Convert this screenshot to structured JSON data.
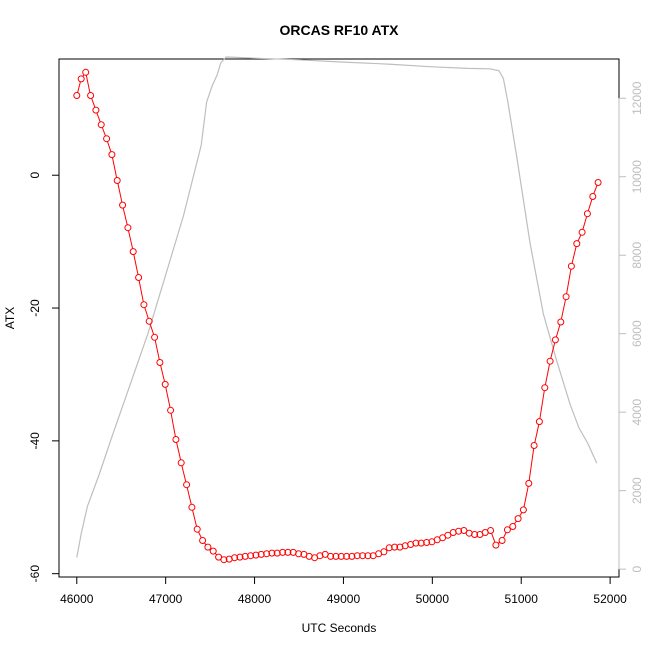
{
  "chart_data": {
    "type": "line",
    "title": "ORCAS RF10 ATX",
    "xlabel": "UTC Seconds",
    "ylabel": "ATX",
    "x_ticks": [
      46000,
      47000,
      48000,
      49000,
      50000,
      51000,
      52000
    ],
    "y_ticks": [
      -60,
      -40,
      -20,
      0
    ],
    "y2_ticks": [
      0,
      2000,
      4000,
      6000,
      8000,
      10000,
      12000
    ],
    "xlim": [
      45800,
      52100
    ],
    "ylim": [
      -60.5,
      17.5
    ],
    "y2lim": [
      -200,
      13000
    ],
    "grid": false,
    "colors": {
      "atx_series": "#ff0000",
      "secondary_series": "#bebebe",
      "secondary_axis": "#bebebe",
      "axis": "#000000"
    },
    "series": [
      {
        "axis": "left",
        "style": "line-with-open-circles",
        "points": [
          [
            46000,
            12.0
          ],
          [
            46050,
            14.5
          ],
          [
            46100,
            15.5
          ],
          [
            46155,
            12.0
          ],
          [
            46215,
            9.8
          ],
          [
            46275,
            7.6
          ],
          [
            46335,
            5.5
          ],
          [
            46395,
            3.1
          ],
          [
            46455,
            -0.8
          ],
          [
            46515,
            -4.5
          ],
          [
            46575,
            -7.9
          ],
          [
            46635,
            -11.5
          ],
          [
            46695,
            -15.4
          ],
          [
            46755,
            -19.5
          ],
          [
            46815,
            -22.0
          ],
          [
            46875,
            -24.4
          ],
          [
            46935,
            -28.2
          ],
          [
            46995,
            -31.5
          ],
          [
            47055,
            -35.4
          ],
          [
            47115,
            -39.8
          ],
          [
            47175,
            -43.3
          ],
          [
            47235,
            -46.6
          ],
          [
            47295,
            -50.0
          ],
          [
            47355,
            -53.3
          ],
          [
            47415,
            -55.0
          ],
          [
            47475,
            -56.0
          ],
          [
            47535,
            -56.6
          ],
          [
            47595,
            -57.5
          ],
          [
            47655,
            -57.9
          ],
          [
            47715,
            -57.8
          ],
          [
            47775,
            -57.6
          ],
          [
            47835,
            -57.5
          ],
          [
            47895,
            -57.4
          ],
          [
            47955,
            -57.3
          ],
          [
            48015,
            -57.2
          ],
          [
            48075,
            -57.1
          ],
          [
            48135,
            -57.0
          ],
          [
            48195,
            -56.9
          ],
          [
            48255,
            -56.9
          ],
          [
            48315,
            -56.8
          ],
          [
            48375,
            -56.8
          ],
          [
            48435,
            -56.8
          ],
          [
            48495,
            -57.0
          ],
          [
            48555,
            -57.1
          ],
          [
            48615,
            -57.4
          ],
          [
            48675,
            -57.6
          ],
          [
            48735,
            -57.3
          ],
          [
            48795,
            -57.1
          ],
          [
            48855,
            -57.4
          ],
          [
            48915,
            -57.4
          ],
          [
            48975,
            -57.4
          ],
          [
            49035,
            -57.4
          ],
          [
            49095,
            -57.4
          ],
          [
            49155,
            -57.3
          ],
          [
            49215,
            -57.3
          ],
          [
            49275,
            -57.3
          ],
          [
            49335,
            -57.3
          ],
          [
            49395,
            -57.0
          ],
          [
            49455,
            -56.7
          ],
          [
            49515,
            -56.1
          ],
          [
            49575,
            -56.0
          ],
          [
            49635,
            -56.0
          ],
          [
            49695,
            -55.8
          ],
          [
            49755,
            -55.6
          ],
          [
            49815,
            -55.4
          ],
          [
            49875,
            -55.4
          ],
          [
            49935,
            -55.3
          ],
          [
            49995,
            -55.2
          ],
          [
            50055,
            -54.9
          ],
          [
            50115,
            -54.6
          ],
          [
            50175,
            -54.2
          ],
          [
            50235,
            -53.8
          ],
          [
            50295,
            -53.6
          ],
          [
            50355,
            -53.5
          ],
          [
            50415,
            -53.9
          ],
          [
            50475,
            -54.1
          ],
          [
            50535,
            -54.1
          ],
          [
            50595,
            -53.8
          ],
          [
            50655,
            -53.5
          ],
          [
            50715,
            -55.7
          ],
          [
            50785,
            -55.0
          ],
          [
            50845,
            -53.4
          ],
          [
            50905,
            -52.9
          ],
          [
            50965,
            -51.7
          ],
          [
            51025,
            -50.4
          ],
          [
            51085,
            -46.4
          ],
          [
            51145,
            -40.7
          ],
          [
            51205,
            -37.1
          ],
          [
            51265,
            -32.0
          ],
          [
            51325,
            -28.0
          ],
          [
            51385,
            -24.8
          ],
          [
            51445,
            -22.1
          ],
          [
            51505,
            -18.3
          ],
          [
            51565,
            -13.7
          ],
          [
            51625,
            -10.3
          ],
          [
            51685,
            -8.6
          ],
          [
            51745,
            -5.8
          ],
          [
            51805,
            -3.2
          ],
          [
            51865,
            -1.1
          ]
        ]
      },
      {
        "axis": "right",
        "style": "line",
        "points": [
          [
            46000,
            300
          ],
          [
            46050,
            900
          ],
          [
            46120,
            1600
          ],
          [
            46250,
            2400
          ],
          [
            46400,
            3400
          ],
          [
            46600,
            4700
          ],
          [
            46800,
            6000
          ],
          [
            47000,
            7500
          ],
          [
            47200,
            9000
          ],
          [
            47400,
            10800
          ],
          [
            47460,
            11900
          ],
          [
            47520,
            12300
          ],
          [
            47580,
            12600
          ],
          [
            47620,
            12900
          ],
          [
            47680,
            13050
          ],
          [
            47800,
            13040
          ],
          [
            48000,
            13020
          ],
          [
            48500,
            12980
          ],
          [
            49000,
            12920
          ],
          [
            49500,
            12870
          ],
          [
            50000,
            12800
          ],
          [
            50400,
            12760
          ],
          [
            50650,
            12750
          ],
          [
            50750,
            12700
          ],
          [
            50800,
            12500
          ],
          [
            50850,
            11900
          ],
          [
            50950,
            10500
          ],
          [
            51100,
            8300
          ],
          [
            51250,
            6500
          ],
          [
            51400,
            5300
          ],
          [
            51550,
            4200
          ],
          [
            51650,
            3600
          ],
          [
            51750,
            3200
          ],
          [
            51850,
            2700
          ]
        ]
      }
    ]
  }
}
